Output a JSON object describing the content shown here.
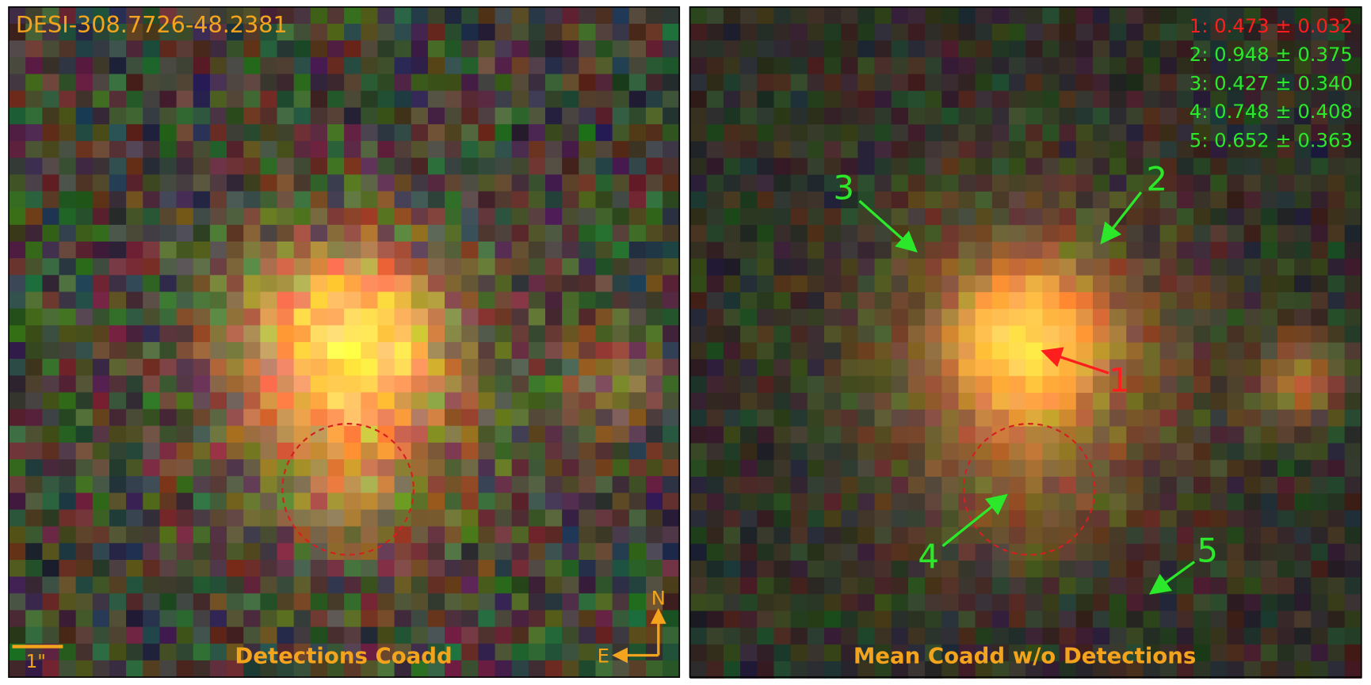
{
  "panels": [
    {
      "object_id": "DESI-308.7726-48.2381",
      "title": "Detections Coadd",
      "scale_label": "1\"",
      "compass": {
        "north": "N",
        "east": "E"
      }
    },
    {
      "title": "Mean Coadd w/o Detections",
      "redshifts": [
        "1: 0.473 ± 0.032",
        "2: 0.948 ± 0.375",
        "3: 0.427 ± 0.340",
        "4: 0.748 ± 0.408",
        "5: 0.652 ± 0.363"
      ],
      "markers": [
        "1",
        "2",
        "3",
        "4",
        "5"
      ]
    }
  ]
}
